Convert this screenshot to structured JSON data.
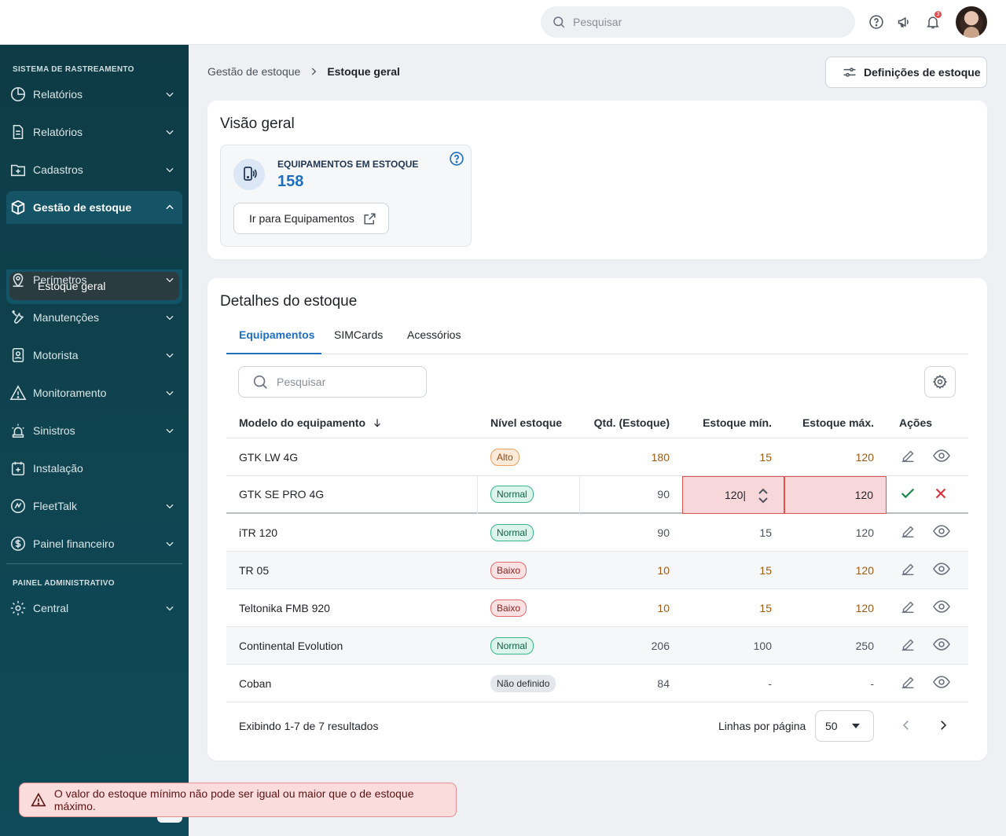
{
  "topbar": {
    "search_placeholder": "Pesquisar",
    "notification_count": "3"
  },
  "sidebar": {
    "section_tracking": "SISTEMA DE RASTREAMENTO",
    "section_admin": "PAINEL ADMINISTRATIVO",
    "items": [
      {
        "label": "Relatórios",
        "icon": "pie-chart-icon"
      },
      {
        "label": "Relatórios",
        "icon": "document-icon"
      },
      {
        "label": "Cadastros",
        "icon": "folder-plus-icon"
      },
      {
        "label": "Gestão de estoque",
        "icon": "box-icon"
      },
      {
        "label": "Perímetros",
        "icon": "map-pin-icon"
      },
      {
        "label": "Manutenções",
        "icon": "tools-icon"
      },
      {
        "label": "Motorista",
        "icon": "id-badge-icon"
      },
      {
        "label": "Monitoramento",
        "icon": "warning-icon"
      },
      {
        "label": "Sinistros",
        "icon": "siren-icon"
      },
      {
        "label": "Instalação",
        "icon": "calendar-plus-icon"
      },
      {
        "label": "FleetTalk",
        "icon": "fleettalk-icon"
      },
      {
        "label": "Painel financeiro",
        "icon": "dollar-icon"
      },
      {
        "label": "Central",
        "icon": "gear-icon"
      }
    ],
    "sub_item": "Estoque geral"
  },
  "breadcrumb": {
    "parent": "Gestão de estoque",
    "current": "Estoque geral"
  },
  "settings_button": "Definições de estoque",
  "overview": {
    "title": "Visão geral",
    "stat_label": "EQUIPAMENTOS EM ESTOQUE",
    "stat_value": "158",
    "goto_button": "Ir para Equipamentos"
  },
  "details": {
    "title": "Detalhes do estoque",
    "tabs": [
      "Equipamentos",
      "SIMCards",
      "Acessórios"
    ],
    "search_placeholder": "Pesquisar",
    "columns": [
      "Modelo do equipamento",
      "Nível estoque",
      "Qtd. (Estoque)",
      "Estoque mín.",
      "Estoque máx.",
      "Ações"
    ],
    "rows": [
      {
        "model": "GTK LW 4G",
        "level": "Alto",
        "qty": "180",
        "min": "15",
        "max": "120"
      },
      {
        "model": "GTK SE PRO 4G",
        "level": "Normal",
        "qty": "90",
        "min": "120|",
        "max": "120"
      },
      {
        "model": "iTR 120",
        "level": "Normal",
        "qty": "90",
        "min": "15",
        "max": "120"
      },
      {
        "model": "TR 05",
        "level": "Baixo",
        "qty": "10",
        "min": "15",
        "max": "120"
      },
      {
        "model": "Teltonika FMB 920",
        "level": "Baixo",
        "qty": "10",
        "min": "15",
        "max": "120"
      },
      {
        "model": "Continental Evolution",
        "level": "Normal",
        "qty": "206",
        "min": "100",
        "max": "250"
      },
      {
        "model": "Coban",
        "level": "Não definido",
        "qty": "84",
        "min": "-",
        "max": "-"
      }
    ],
    "footer_text": "Exibindo 1-7 de 7 resultados",
    "rows_per_page_label": "Linhas por página",
    "rows_per_page_value": "50"
  },
  "toast": {
    "message": "O valor do estoque mínimo não pode ser igual ou maior que o de estoque máximo."
  },
  "colors": {
    "sidebar_bg": "#0e3b45",
    "accent": "#1f6fbf",
    "error": "#d9534f"
  }
}
